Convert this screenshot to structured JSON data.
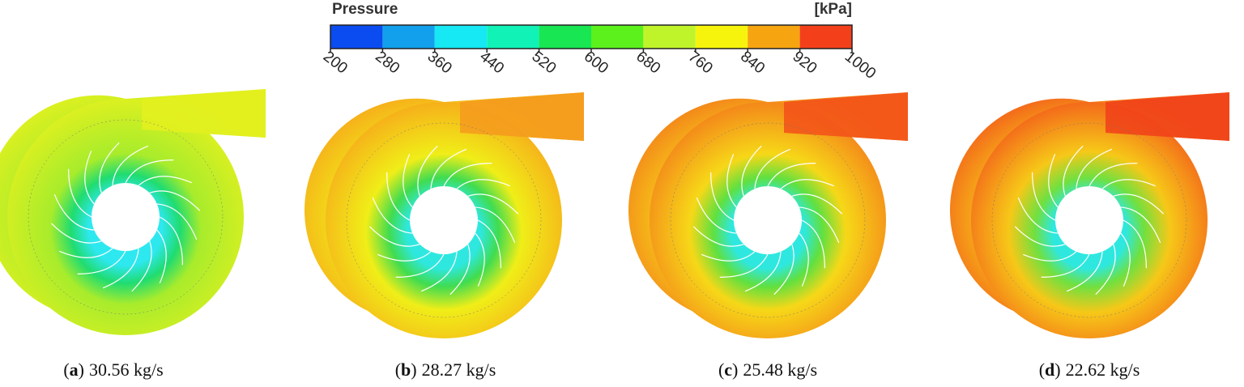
{
  "colorbar": {
    "title": "Pressure",
    "unit": "[kPa]",
    "ticks": [
      200,
      280,
      360,
      440,
      520,
      600,
      680,
      760,
      840,
      920,
      1000
    ],
    "colors": [
      "#0a4cf0",
      "#12a0ec",
      "#16e8f4",
      "#10f2b6",
      "#18e652",
      "#5cf01c",
      "#c0f42a",
      "#f6f40c",
      "#f6a410",
      "#f4401a"
    ]
  },
  "panels": [
    {
      "prefix": "(",
      "letter": "a",
      "suffix": ")",
      "text": "30.56 kg/s"
    },
    {
      "prefix": "(",
      "letter": "b",
      "suffix": ")",
      "text": "28.27 kg/s"
    },
    {
      "prefix": "(",
      "letter": "c",
      "suffix": ")",
      "text": "25.48 kg/s"
    },
    {
      "prefix": "(",
      "letter": "d",
      "suffix": ")",
      "text": "22.62 kg/s"
    }
  ]
}
